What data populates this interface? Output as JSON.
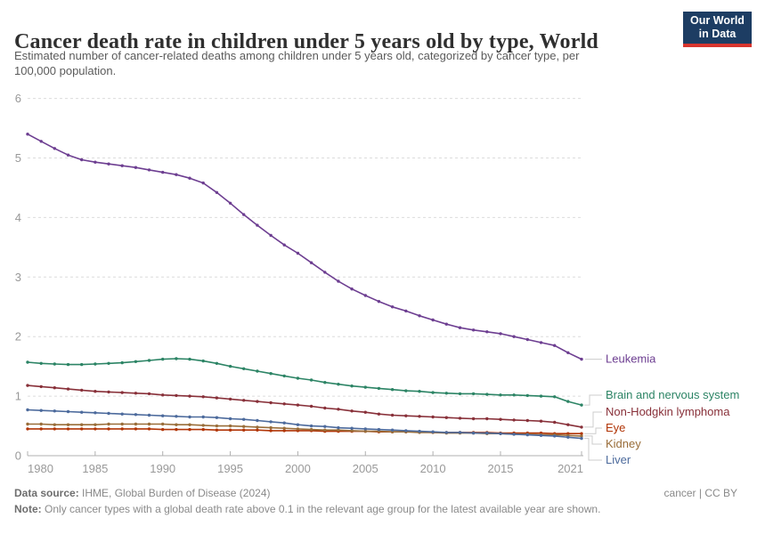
{
  "header": {
    "title": "Cancer death rate in children under 5 years old by type, World",
    "subtitle_line1": "Estimated number of cancer-related deaths among children under 5 years old, categorized by cancer type, per",
    "subtitle_line2": "100,000 population.",
    "logo": {
      "line1": "Our World",
      "line2": "in Data"
    }
  },
  "footer": {
    "source_label": "Data source:",
    "source_text": "IHME, Global Burden of Disease (2024)",
    "attribution": "cancer | CC BY",
    "note_label": "Note:",
    "note_text": "Only cancer types with a global death rate above 0.1 in the relevant age group for the latest available year are shown."
  },
  "colors": {
    "logo_navy": "#1d3d63",
    "logo_red": "#d8352e",
    "axis_text": "#999999",
    "axis_line": "#b0b0b0",
    "gridline": "#dcdcdc",
    "connector": "#cccccc"
  },
  "chart_data": {
    "type": "line",
    "title": "Cancer death rate in children under 5 years old by type, World",
    "xlabel": "",
    "ylabel": "",
    "ylim": [
      0,
      6
    ],
    "yticks": [
      0,
      1,
      2,
      3,
      4,
      5,
      6
    ],
    "xticks": [
      1980,
      1985,
      1990,
      1995,
      2000,
      2005,
      2010,
      2015,
      2021
    ],
    "grid": "horizontal-dashed",
    "legend": "right-end-labels",
    "markers": true,
    "x": [
      1980,
      1981,
      1982,
      1983,
      1984,
      1985,
      1986,
      1987,
      1988,
      1989,
      1990,
      1991,
      1992,
      1993,
      1994,
      1995,
      1996,
      1997,
      1998,
      1999,
      2000,
      2001,
      2002,
      2003,
      2004,
      2005,
      2006,
      2007,
      2008,
      2009,
      2010,
      2011,
      2012,
      2013,
      2014,
      2015,
      2016,
      2017,
      2018,
      2019,
      2020,
      2021
    ],
    "series": [
      {
        "name": "Leukemia",
        "color": "#6d3e91",
        "values": [
          5.4,
          5.28,
          5.16,
          5.05,
          4.97,
          4.93,
          4.9,
          4.87,
          4.84,
          4.8,
          4.76,
          4.72,
          4.66,
          4.58,
          4.42,
          4.24,
          4.05,
          3.87,
          3.7,
          3.54,
          3.4,
          3.24,
          3.08,
          2.93,
          2.8,
          2.69,
          2.59,
          2.5,
          2.43,
          2.35,
          2.28,
          2.21,
          2.15,
          2.11,
          2.08,
          2.05,
          2.0,
          1.95,
          1.9,
          1.85,
          1.73,
          1.62
        ]
      },
      {
        "name": "Brain and nervous system",
        "color": "#2c8465",
        "values": [
          1.57,
          1.55,
          1.54,
          1.53,
          1.53,
          1.54,
          1.55,
          1.56,
          1.58,
          1.6,
          1.62,
          1.63,
          1.62,
          1.59,
          1.55,
          1.5,
          1.46,
          1.42,
          1.38,
          1.34,
          1.3,
          1.27,
          1.23,
          1.2,
          1.17,
          1.15,
          1.13,
          1.11,
          1.09,
          1.08,
          1.06,
          1.05,
          1.04,
          1.04,
          1.03,
          1.02,
          1.02,
          1.01,
          1.0,
          0.99,
          0.91,
          0.85
        ]
      },
      {
        "name": "Non-Hodgkin lymphoma",
        "color": "#883039",
        "values": [
          1.18,
          1.16,
          1.14,
          1.12,
          1.1,
          1.08,
          1.07,
          1.06,
          1.05,
          1.04,
          1.02,
          1.01,
          1.0,
          0.99,
          0.97,
          0.95,
          0.93,
          0.91,
          0.89,
          0.87,
          0.85,
          0.83,
          0.8,
          0.78,
          0.75,
          0.73,
          0.7,
          0.68,
          0.67,
          0.66,
          0.65,
          0.64,
          0.63,
          0.62,
          0.62,
          0.61,
          0.6,
          0.59,
          0.58,
          0.56,
          0.52,
          0.48
        ]
      },
      {
        "name": "Eye",
        "color": "#b13507",
        "values": [
          0.45,
          0.45,
          0.45,
          0.45,
          0.45,
          0.45,
          0.45,
          0.45,
          0.45,
          0.45,
          0.44,
          0.44,
          0.44,
          0.44,
          0.43,
          0.43,
          0.43,
          0.43,
          0.42,
          0.42,
          0.42,
          0.42,
          0.41,
          0.41,
          0.41,
          0.41,
          0.4,
          0.4,
          0.4,
          0.4,
          0.39,
          0.39,
          0.39,
          0.39,
          0.39,
          0.38,
          0.38,
          0.38,
          0.38,
          0.37,
          0.37,
          0.37
        ]
      },
      {
        "name": "Kidney",
        "color": "#996d39",
        "values": [
          0.53,
          0.53,
          0.52,
          0.52,
          0.52,
          0.52,
          0.53,
          0.53,
          0.53,
          0.53,
          0.53,
          0.52,
          0.52,
          0.51,
          0.5,
          0.5,
          0.49,
          0.48,
          0.47,
          0.46,
          0.45,
          0.44,
          0.43,
          0.43,
          0.42,
          0.41,
          0.41,
          0.4,
          0.4,
          0.39,
          0.39,
          0.38,
          0.38,
          0.38,
          0.37,
          0.37,
          0.36,
          0.36,
          0.35,
          0.35,
          0.34,
          0.33
        ]
      },
      {
        "name": "Liver",
        "color": "#4c6a9c",
        "values": [
          0.77,
          0.76,
          0.75,
          0.74,
          0.73,
          0.72,
          0.71,
          0.7,
          0.69,
          0.68,
          0.67,
          0.66,
          0.65,
          0.65,
          0.64,
          0.62,
          0.61,
          0.59,
          0.57,
          0.55,
          0.52,
          0.5,
          0.49,
          0.47,
          0.46,
          0.45,
          0.44,
          0.43,
          0.42,
          0.41,
          0.4,
          0.39,
          0.39,
          0.38,
          0.38,
          0.37,
          0.36,
          0.35,
          0.34,
          0.33,
          0.31,
          0.29
        ]
      }
    ]
  }
}
